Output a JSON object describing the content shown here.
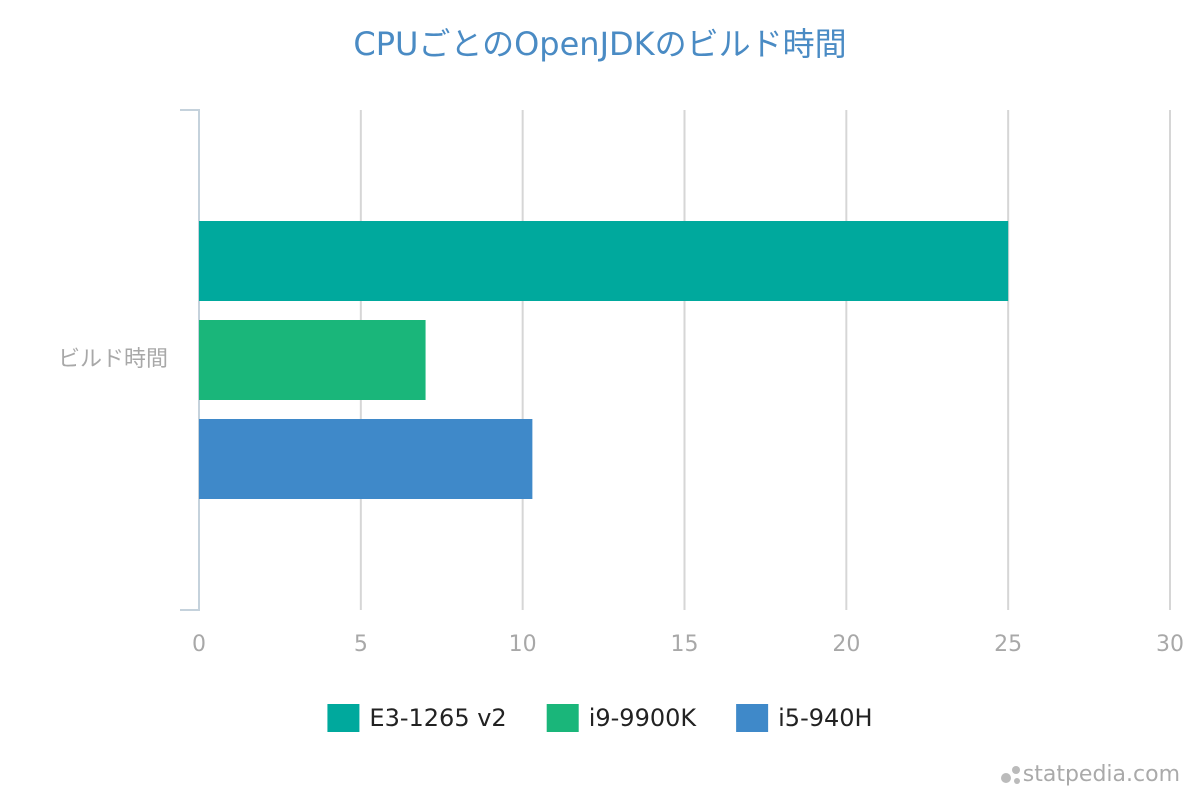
{
  "chart_data": {
    "type": "bar",
    "orientation": "horizontal",
    "title": "CPUごとのOpenJDKのビルド時間",
    "categories": [
      "ビルド時間"
    ],
    "series": [
      {
        "name": "E3-1265 v2",
        "color": "#00a99d",
        "values": [
          25
        ]
      },
      {
        "name": "i9-9900K",
        "color": "#1ab67a",
        "values": [
          7
        ]
      },
      {
        "name": "i5-940H",
        "color": "#3f89c9",
        "values": [
          10.3
        ]
      }
    ],
    "xlim": [
      0,
      30
    ],
    "xticks": [
      0,
      5,
      10,
      15,
      20,
      25,
      30
    ],
    "grid": true,
    "legend": "bottom"
  },
  "footer": {
    "watermark": "statpedia.com"
  }
}
